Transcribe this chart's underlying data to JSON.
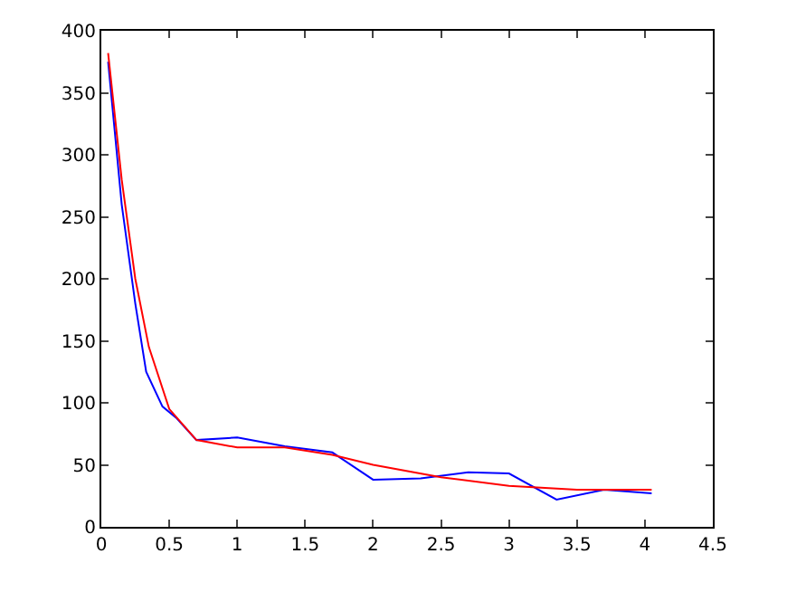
{
  "chart_data": {
    "type": "line",
    "xlim": [
      0,
      4.5
    ],
    "xticks": [
      0,
      0.5,
      1,
      1.5,
      2,
      2.5,
      3,
      3.5,
      4,
      4.5
    ],
    "ylim": [
      0,
      400
    ],
    "yticks": [
      0,
      50,
      100,
      150,
      200,
      250,
      300,
      350,
      400
    ],
    "legend": false,
    "marker": "none",
    "line_style": "solid",
    "series": [
      {
        "color": "#0000ff",
        "x": [
          0.05,
          0.15,
          0.25,
          0.33,
          0.45,
          0.55,
          0.7,
          1.0,
          1.35,
          1.7,
          2.0,
          2.35,
          2.7,
          3.0,
          3.35,
          3.7,
          4.05
        ],
        "values": [
          375,
          260,
          180,
          125,
          97,
          88,
          70,
          72,
          65,
          60,
          38,
          39,
          44,
          43,
          22,
          30,
          27
        ]
      },
      {
        "color": "#ff0000",
        "x": [
          0.05,
          0.15,
          0.25,
          0.35,
          0.5,
          0.7,
          1.0,
          1.35,
          1.7,
          2.0,
          2.5,
          3.0,
          3.5,
          4.05
        ],
        "values": [
          382,
          280,
          200,
          145,
          95,
          70,
          64,
          64,
          58,
          50,
          40,
          33,
          30,
          30
        ]
      }
    ]
  }
}
